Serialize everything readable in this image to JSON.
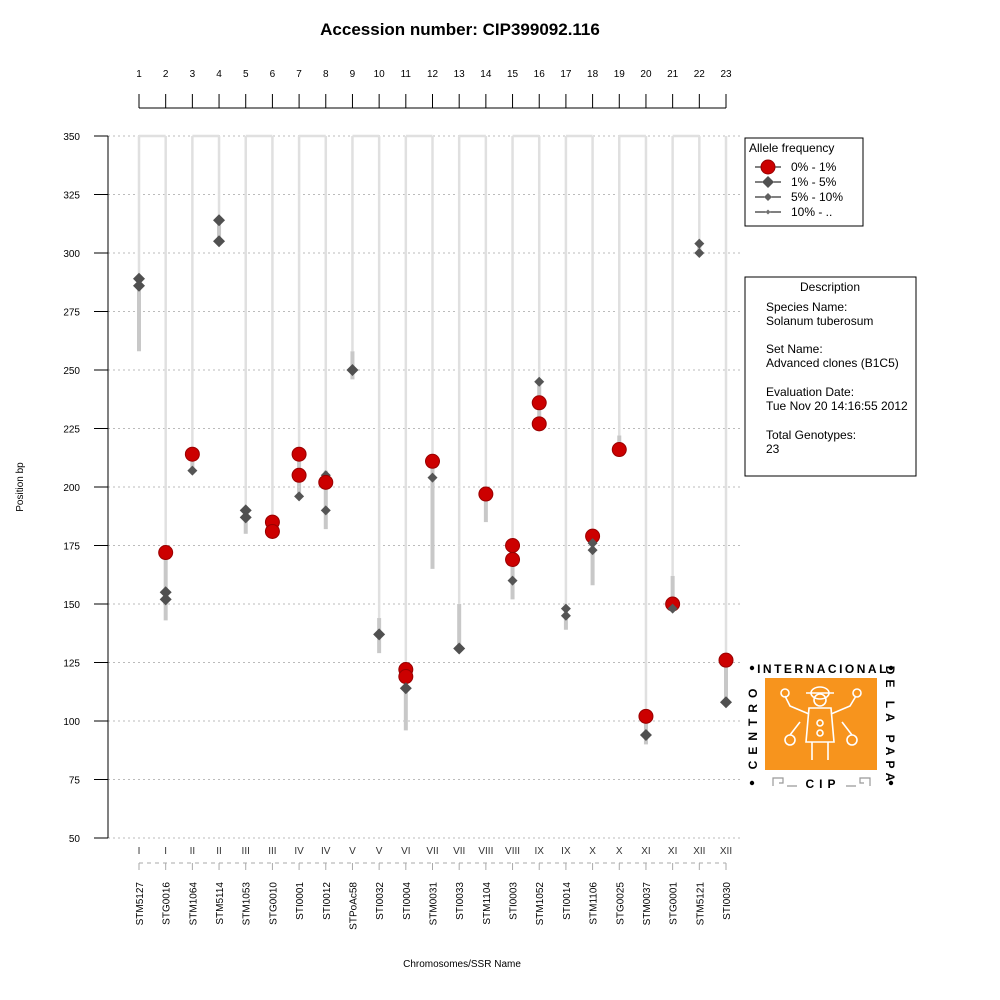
{
  "chart_data": {
    "type": "scatter",
    "title": "Accession number: CIP399092.116",
    "xlabel": "Chromosomes/SSR Name",
    "ylabel": "Position bp",
    "ylim": [
      50,
      350
    ],
    "yticks": [
      50,
      75,
      100,
      125,
      150,
      175,
      200,
      225,
      250,
      275,
      300,
      325,
      350
    ],
    "grid": true,
    "markers": [
      {
        "id": "1",
        "chromosome": "I",
        "ssr": "STM5127",
        "range": [
          258,
          289
        ],
        "alleles": [
          {
            "position": 289,
            "freq_class": "1% - 5%"
          },
          {
            "position": 286,
            "freq_class": "1% - 5%"
          }
        ]
      },
      {
        "id": "2",
        "chromosome": "I",
        "ssr": "STG0016",
        "range": [
          143,
          172
        ],
        "alleles": [
          {
            "position": 172,
            "freq_class": "0% - 1%"
          },
          {
            "position": 155,
            "freq_class": "1% - 5%"
          },
          {
            "position": 152,
            "freq_class": "1% - 5%"
          }
        ]
      },
      {
        "id": "3",
        "chromosome": "II",
        "ssr": "STM1064",
        "range": [
          207,
          214
        ],
        "alleles": [
          {
            "position": 214,
            "freq_class": "0% - 1%"
          },
          {
            "position": 207,
            "freq_class": "5% - 10%"
          }
        ]
      },
      {
        "id": "4",
        "chromosome": "II",
        "ssr": "STM5114",
        "range": [
          305,
          315
        ],
        "alleles": [
          {
            "position": 314,
            "freq_class": "1% - 5%"
          },
          {
            "position": 305,
            "freq_class": "1% - 5%"
          }
        ]
      },
      {
        "id": "5",
        "chromosome": "III",
        "ssr": "STM1053",
        "range": [
          180,
          190
        ],
        "alleles": [
          {
            "position": 190,
            "freq_class": "1% - 5%"
          },
          {
            "position": 187,
            "freq_class": "1% - 5%"
          }
        ]
      },
      {
        "id": "6",
        "chromosome": "III",
        "ssr": "STG0010",
        "range": [
          180,
          187
        ],
        "alleles": [
          {
            "position": 185,
            "freq_class": "0% - 1%"
          },
          {
            "position": 181,
            "freq_class": "0% - 1%"
          }
        ]
      },
      {
        "id": "7",
        "chromosome": "IV",
        "ssr": "STI0001",
        "range": [
          196,
          214
        ],
        "alleles": [
          {
            "position": 214,
            "freq_class": "0% - 1%"
          },
          {
            "position": 205,
            "freq_class": "0% - 1%"
          },
          {
            "position": 196,
            "freq_class": "5% - 10%"
          }
        ]
      },
      {
        "id": "8",
        "chromosome": "IV",
        "ssr": "STI0012",
        "range": [
          182,
          207
        ],
        "alleles": [
          {
            "position": 205,
            "freq_class": "5% - 10%"
          },
          {
            "position": 202,
            "freq_class": "0% - 1%"
          },
          {
            "position": 190,
            "freq_class": "5% - 10%"
          }
        ]
      },
      {
        "id": "9",
        "chromosome": "V",
        "ssr": "STPoAc58",
        "range": [
          246,
          258
        ],
        "alleles": [
          {
            "position": 250,
            "freq_class": "1% - 5%"
          }
        ]
      },
      {
        "id": "10",
        "chromosome": "V",
        "ssr": "STI0032",
        "range": [
          129,
          144
        ],
        "alleles": [
          {
            "position": 137,
            "freq_class": "1% - 5%"
          }
        ]
      },
      {
        "id": "11",
        "chromosome": "VI",
        "ssr": "STI0004",
        "range": [
          96,
          122
        ],
        "alleles": [
          {
            "position": 122,
            "freq_class": "0% - 1%"
          },
          {
            "position": 119,
            "freq_class": "0% - 1%"
          },
          {
            "position": 114,
            "freq_class": "1% - 5%"
          }
        ]
      },
      {
        "id": "12",
        "chromosome": "VII",
        "ssr": "STM0031",
        "range": [
          165,
          211
        ],
        "alleles": [
          {
            "position": 211,
            "freq_class": "0% - 1%"
          },
          {
            "position": 204,
            "freq_class": "5% - 10%"
          }
        ]
      },
      {
        "id": "13",
        "chromosome": "VII",
        "ssr": "STI0033",
        "range": [
          131,
          150
        ],
        "alleles": [
          {
            "position": 131,
            "freq_class": "1% - 5%"
          }
        ]
      },
      {
        "id": "14",
        "chromosome": "VIII",
        "ssr": "STM1104",
        "range": [
          185,
          197
        ],
        "alleles": [
          {
            "position": 197,
            "freq_class": "0% - 1%"
          }
        ]
      },
      {
        "id": "15",
        "chromosome": "VIII",
        "ssr": "STI0003",
        "range": [
          152,
          175
        ],
        "alleles": [
          {
            "position": 175,
            "freq_class": "0% - 1%"
          },
          {
            "position": 169,
            "freq_class": "0% - 1%"
          },
          {
            "position": 160,
            "freq_class": "5% - 10%"
          }
        ]
      },
      {
        "id": "16",
        "chromosome": "IX",
        "ssr": "STM1052",
        "range": [
          227,
          245
        ],
        "alleles": [
          {
            "position": 245,
            "freq_class": "5% - 10%"
          },
          {
            "position": 236,
            "freq_class": "0% - 1%"
          },
          {
            "position": 227,
            "freq_class": "0% - 1%"
          }
        ]
      },
      {
        "id": "17",
        "chromosome": "IX",
        "ssr": "STI0014",
        "range": [
          139,
          148
        ],
        "alleles": [
          {
            "position": 148,
            "freq_class": "5% - 10%"
          },
          {
            "position": 145,
            "freq_class": "5% - 10%"
          }
        ]
      },
      {
        "id": "18",
        "chromosome": "X",
        "ssr": "STM1106",
        "range": [
          158,
          179
        ],
        "alleles": [
          {
            "position": 179,
            "freq_class": "0% - 1%"
          },
          {
            "position": 176,
            "freq_class": "5% - 10%"
          },
          {
            "position": 173,
            "freq_class": "5% - 10%"
          }
        ]
      },
      {
        "id": "19",
        "chromosome": "X",
        "ssr": "STG0025",
        "range": [
          214,
          222
        ],
        "alleles": [
          {
            "position": 216,
            "freq_class": "0% - 1%"
          }
        ]
      },
      {
        "id": "20",
        "chromosome": "XI",
        "ssr": "STM0037",
        "range": [
          90,
          102
        ],
        "alleles": [
          {
            "position": 102,
            "freq_class": "0% - 1%"
          },
          {
            "position": 94,
            "freq_class": "1% - 5%"
          }
        ]
      },
      {
        "id": "21",
        "chromosome": "XI",
        "ssr": "STG0001",
        "range": [
          147,
          162
        ],
        "alleles": [
          {
            "position": 150,
            "freq_class": "0% - 1%"
          },
          {
            "position": 148,
            "freq_class": "5% - 10%"
          }
        ]
      },
      {
        "id": "22",
        "chromosome": "XII",
        "ssr": "STM5121",
        "range": [
          300,
          305
        ],
        "alleles": [
          {
            "position": 304,
            "freq_class": "5% - 10%"
          },
          {
            "position": 300,
            "freq_class": "5% - 10%"
          }
        ]
      },
      {
        "id": "23",
        "chromosome": "XII",
        "ssr": "STI0030",
        "range": [
          108,
          126
        ],
        "alleles": [
          {
            "position": 126,
            "freq_class": "0% - 1%"
          },
          {
            "position": 108,
            "freq_class": "1% - 5%"
          }
        ]
      }
    ],
    "legend": {
      "title": "Allele frequency",
      "placement": "top-right",
      "entries": [
        {
          "label": "0% - 1%",
          "color": "#cc0000"
        },
        {
          "label": "1% - 5%",
          "color": "#505050"
        },
        {
          "label": "5% - 10%",
          "color": "#606060"
        },
        {
          "label": "10% - ..",
          "color": "#707070"
        }
      ]
    }
  },
  "description": {
    "title": "Description",
    "species_label": "Species Name:",
    "species_value": "Solanum tuberosum",
    "set_label": "Set Name:",
    "set_value": "Advanced clones (B1C5)",
    "date_label": "Evaluation Date:",
    "date_value": "Tue Nov 20 14:16:55 2012",
    "genotypes_label": "Total Genotypes:",
    "genotypes_value": "23"
  },
  "logo": {
    "text_top": "INTERNACIONAL",
    "text_right": "DE LA PAPA",
    "text_left": "CENTRO",
    "text_bottom": "CIP",
    "color": "#f7941d"
  },
  "colors": {
    "rare": "#cc0000",
    "allele": "#505050",
    "range": "#c8c8c8",
    "connector": "#e0e0e0",
    "grid": "#bbbbbb"
  }
}
